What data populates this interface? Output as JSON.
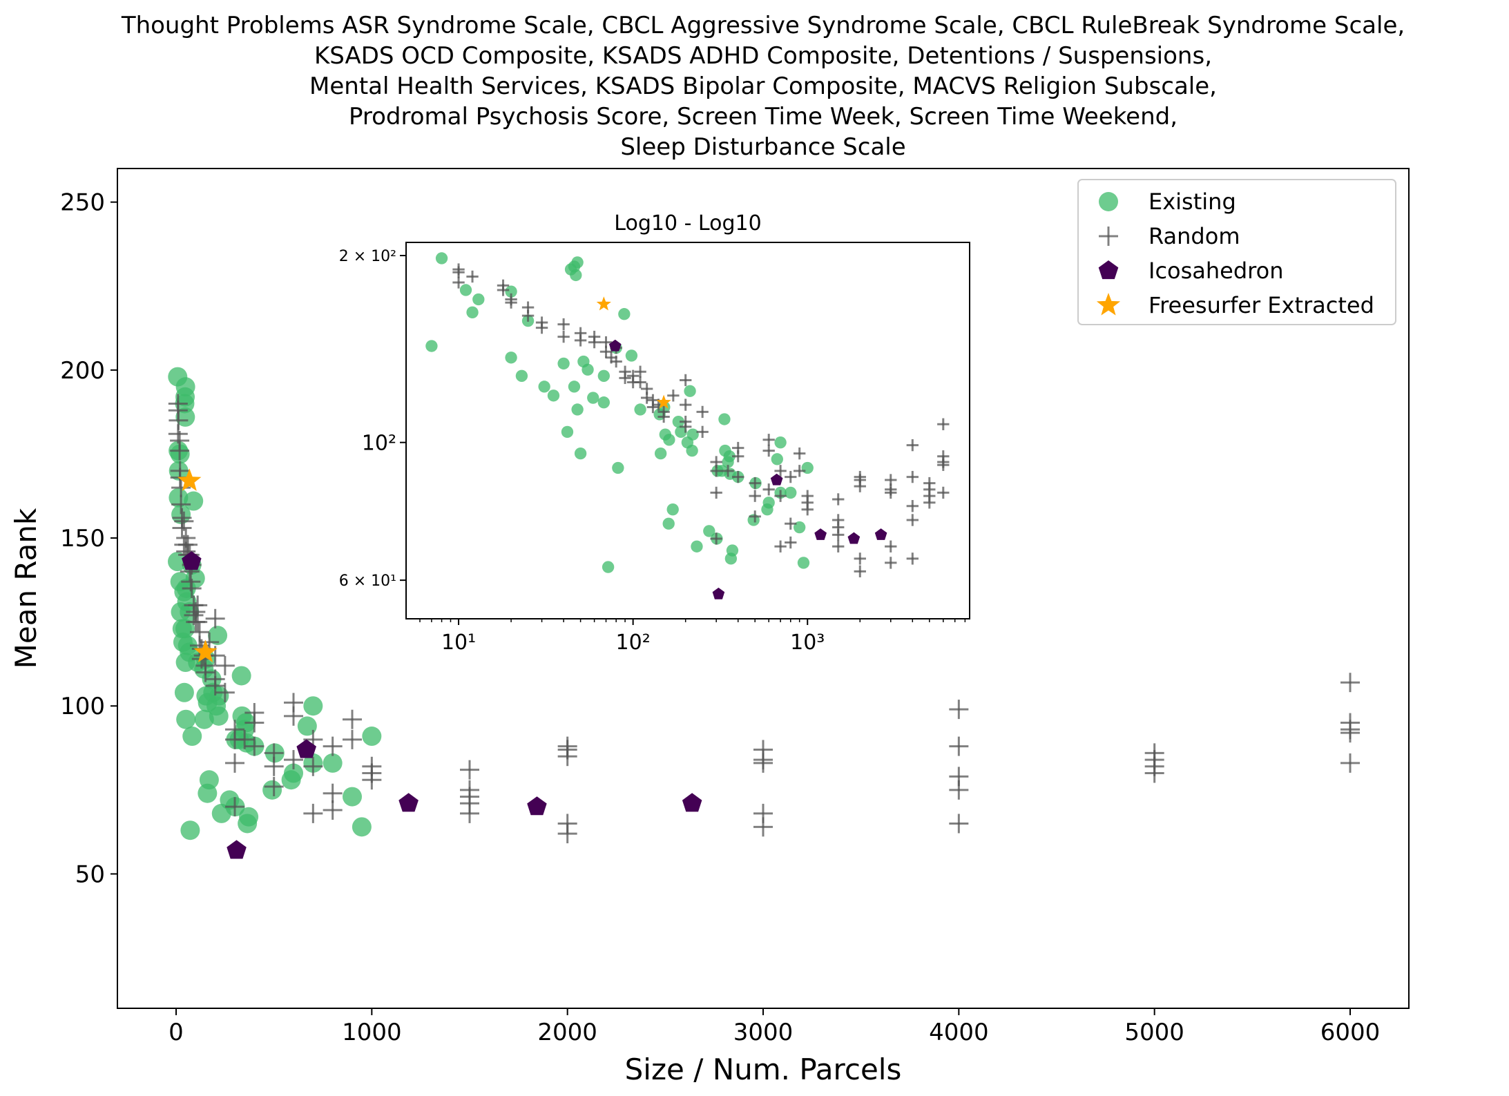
{
  "chart_data": {
    "type": "scatter",
    "title_lines": [
      "Thought Problems ASR Syndrome Scale, CBCL Aggressive Syndrome Scale, CBCL RuleBreak Syndrome Scale,",
      "KSADS OCD Composite, KSADS ADHD Composite, Detentions / Suspensions,",
      "Mental Health Services, KSADS Bipolar Composite, MACVS Religion Subscale,",
      "Prodromal Psychosis Score, Screen Time Week, Screen Time Weekend,",
      "Sleep Disturbance Scale"
    ],
    "xlabel": "Size / Num. Parcels",
    "ylabel": "Mean Rank",
    "xlim": [
      -300,
      6300
    ],
    "ylim": [
      10,
      260
    ],
    "xticks": [
      "0",
      "1000",
      "2000",
      "3000",
      "4000",
      "5000",
      "6000"
    ],
    "xtick_values": [
      0,
      1000,
      2000,
      3000,
      4000,
      5000,
      6000
    ],
    "yticks": [
      "50",
      "100",
      "150",
      "200",
      "250"
    ],
    "ytick_values": [
      50,
      100,
      150,
      200,
      250
    ],
    "legend_position": "top-right",
    "series": [
      {
        "name": "Existing",
        "marker": "circle",
        "color": "#3dbb6a",
        "points": [
          [
            8,
            198
          ],
          [
            48,
            195
          ],
          [
            46,
            192
          ],
          [
            44,
            190
          ],
          [
            47,
            186
          ],
          [
            11,
            176
          ],
          [
            20,
            175
          ],
          [
            13,
            170
          ],
          [
            12,
            162
          ],
          [
            89,
            161
          ],
          [
            25,
            157
          ],
          [
            7,
            143
          ],
          [
            80,
            142
          ],
          [
            20,
            137
          ],
          [
            52,
            135
          ],
          [
            98,
            138
          ],
          [
            40,
            134
          ],
          [
            55,
            131
          ],
          [
            68,
            128
          ],
          [
            23,
            128
          ],
          [
            31,
            123
          ],
          [
            46,
            123
          ],
          [
            35,
            119
          ],
          [
            212,
            121
          ],
          [
            59,
            118
          ],
          [
            68,
            116
          ],
          [
            151,
            114
          ],
          [
            48,
            113
          ],
          [
            110,
            113
          ],
          [
            142,
            111
          ],
          [
            182,
            108
          ],
          [
            188,
            104
          ],
          [
            153,
            103
          ],
          [
            42,
            104
          ],
          [
            220,
            103
          ],
          [
            161,
            101
          ],
          [
            205,
            100
          ],
          [
            334,
            109
          ],
          [
            218,
            97
          ],
          [
            50,
            96
          ],
          [
            144,
            96
          ],
          [
            337,
            97
          ],
          [
            350,
            93
          ],
          [
            357,
            95
          ],
          [
            323,
            90
          ],
          [
            700,
            100
          ],
          [
            670,
            94
          ],
          [
            1000,
            91
          ],
          [
            82,
            91
          ],
          [
            360,
            89
          ],
          [
            305,
            90
          ],
          [
            400,
            88
          ],
          [
            504,
            86
          ],
          [
            600,
            80
          ],
          [
            700,
            83
          ],
          [
            800,
            83
          ],
          [
            169,
            78
          ],
          [
            588,
            78
          ],
          [
            491,
            75
          ],
          [
            160,
            74
          ],
          [
            900,
            73
          ],
          [
            273,
            72
          ],
          [
            232,
            68
          ],
          [
            302,
            70
          ],
          [
            371,
            67
          ],
          [
            364,
            65
          ],
          [
            72,
            63
          ],
          [
            949,
            64
          ]
        ]
      },
      {
        "name": "Random",
        "marker": "plus",
        "color": "#555555",
        "points": [
          [
            10,
            190
          ],
          [
            10,
            188
          ],
          [
            12,
            185
          ],
          [
            10,
            181
          ],
          [
            18,
            179
          ],
          [
            18,
            176
          ],
          [
            20,
            170
          ],
          [
            20,
            168
          ],
          [
            25,
            165
          ],
          [
            25,
            160
          ],
          [
            30,
            156
          ],
          [
            30,
            153
          ],
          [
            40,
            155
          ],
          [
            40,
            148
          ],
          [
            50,
            150
          ],
          [
            50,
            146
          ],
          [
            60,
            148
          ],
          [
            60,
            145
          ],
          [
            70,
            145
          ],
          [
            70,
            140
          ],
          [
            75,
            137
          ],
          [
            80,
            142
          ],
          [
            80,
            135
          ],
          [
            90,
            130
          ],
          [
            90,
            127
          ],
          [
            100,
            128
          ],
          [
            100,
            125
          ],
          [
            110,
            130
          ],
          [
            110,
            125
          ],
          [
            120,
            122
          ],
          [
            120,
            118
          ],
          [
            130,
            117
          ],
          [
            130,
            114
          ],
          [
            140,
            115
          ],
          [
            150,
            112
          ],
          [
            150,
            110
          ],
          [
            170,
            119
          ],
          [
            200,
            126
          ],
          [
            200,
            115
          ],
          [
            200,
            108
          ],
          [
            200,
            106
          ],
          [
            250,
            112
          ],
          [
            250,
            104
          ],
          [
            300,
            93
          ],
          [
            300,
            90
          ],
          [
            300,
            83
          ],
          [
            300,
            70
          ],
          [
            350,
            90
          ],
          [
            400,
            98
          ],
          [
            400,
            95
          ],
          [
            400,
            88
          ],
          [
            500,
            86
          ],
          [
            500,
            82
          ],
          [
            500,
            76
          ],
          [
            600,
            101
          ],
          [
            600,
            97
          ],
          [
            600,
            84
          ],
          [
            700,
            90
          ],
          [
            700,
            82
          ],
          [
            700,
            68
          ],
          [
            800,
            88
          ],
          [
            800,
            74
          ],
          [
            800,
            69
          ],
          [
            900,
            96
          ],
          [
            900,
            90
          ],
          [
            1000,
            82
          ],
          [
            1000,
            80
          ],
          [
            1000,
            78
          ],
          [
            1500,
            81
          ],
          [
            1500,
            75
          ],
          [
            1500,
            73
          ],
          [
            1500,
            71
          ],
          [
            1500,
            68
          ],
          [
            2000,
            88
          ],
          [
            2000,
            87
          ],
          [
            2000,
            85
          ],
          [
            2000,
            65
          ],
          [
            2000,
            62
          ],
          [
            3000,
            87
          ],
          [
            3000,
            84
          ],
          [
            3000,
            83
          ],
          [
            3000,
            68
          ],
          [
            3000,
            64
          ],
          [
            4000,
            99
          ],
          [
            4000,
            88
          ],
          [
            4000,
            79
          ],
          [
            4000,
            75
          ],
          [
            4000,
            65
          ],
          [
            5000,
            86
          ],
          [
            5000,
            84
          ],
          [
            5000,
            82
          ],
          [
            5000,
            80
          ],
          [
            6000,
            107
          ],
          [
            6000,
            95
          ],
          [
            6000,
            93
          ],
          [
            6000,
            92
          ],
          [
            6000,
            83
          ]
        ]
      },
      {
        "name": "Icosahedron",
        "marker": "pentagon",
        "color": "#440154",
        "points": [
          [
            79,
            143
          ],
          [
            309,
            57
          ],
          [
            666,
            87
          ],
          [
            1188,
            71
          ],
          [
            1844,
            70
          ],
          [
            2637,
            71
          ]
        ]
      },
      {
        "name": "Freesurfer Extracted",
        "marker": "star",
        "color": "#ffa500",
        "points": [
          [
            68,
            167
          ],
          [
            150,
            116
          ]
        ]
      }
    ],
    "inset": {
      "title": "Log10 - Log10",
      "xscale": "log",
      "yscale": "log",
      "xlim": [
        5,
        8500
      ],
      "ylim": [
        52,
        210
      ],
      "xticks": [
        "10¹",
        "10²",
        "10³"
      ],
      "xtick_values": [
        10,
        100,
        1000
      ],
      "yticks": [
        "2 × 10²",
        "10²",
        "6 × 10¹"
      ],
      "ytick_values": [
        200,
        100,
        60
      ]
    }
  }
}
